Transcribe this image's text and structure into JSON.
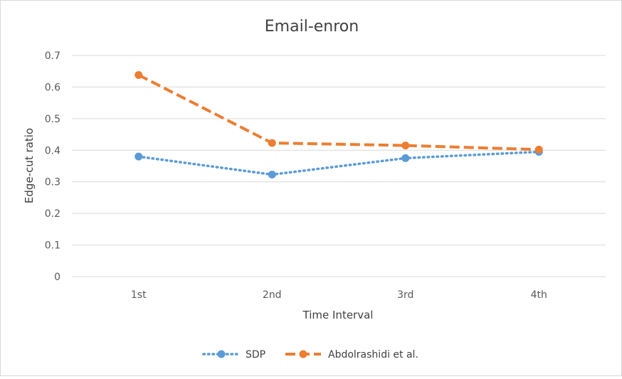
{
  "chart_data": {
    "type": "line",
    "title": "Email-enron",
    "xlabel": "Time Interval",
    "ylabel": "Edge-cut ratio",
    "categories": [
      "1st",
      "2nd",
      "3rd",
      "4th"
    ],
    "ylim": [
      0,
      0.7
    ],
    "yticks": [
      "0",
      "0.1",
      "0.2",
      "0.3",
      "0.4",
      "0.5",
      "0.6",
      "0.7"
    ],
    "grid": true,
    "legend_position": "bottom",
    "series": [
      {
        "name": "SDP",
        "values": [
          0.38,
          0.323,
          0.375,
          0.395
        ],
        "color": "#5b9bd5",
        "line_style": "dotted"
      },
      {
        "name": "Abdolrashidi et al.",
        "values": [
          0.638,
          0.423,
          0.415,
          0.402
        ],
        "color": "#ed7d31",
        "line_style": "dashed"
      }
    ]
  }
}
